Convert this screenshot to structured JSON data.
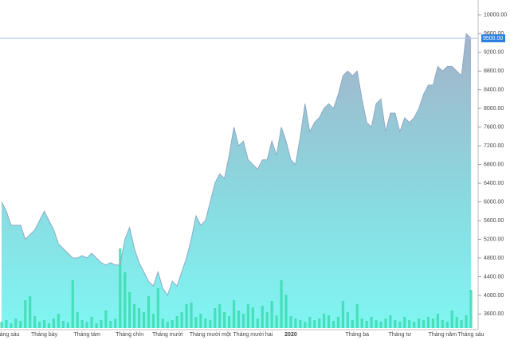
{
  "chart_data": {
    "type": "area",
    "categories": [
      null,
      "Tháng sáu",
      null,
      null,
      null,
      null,
      null,
      null,
      null,
      "Tháng bảy",
      null,
      null,
      null,
      null,
      null,
      null,
      null,
      null,
      "Tháng tám",
      null,
      null,
      null,
      null,
      null,
      null,
      null,
      null,
      "Tháng chín",
      null,
      null,
      null,
      null,
      null,
      null,
      null,
      "Tháng mười",
      null,
      null,
      null,
      null,
      null,
      null,
      null,
      null,
      "Tháng mười một",
      null,
      null,
      null,
      null,
      null,
      null,
      null,
      null,
      "Tháng mười hai",
      null,
      null,
      null,
      null,
      null,
      null,
      null,
      "2020",
      null,
      null,
      null,
      null,
      null,
      null,
      null,
      null,
      null,
      null,
      null,
      null,
      null,
      "Tháng ba",
      null,
      null,
      null,
      null,
      null,
      null,
      null,
      null,
      "Tháng tư",
      null,
      null,
      null,
      null,
      null,
      null,
      null,
      null,
      "Tháng năm",
      null,
      null,
      null,
      null,
      null,
      "Tháng sáu"
    ],
    "series": [
      {
        "color": "#8fa9c6",
        "values": [
          6000,
          5800,
          5500,
          5500,
          5500,
          5200,
          5300,
          5400,
          5600,
          5800,
          5600,
          5400,
          5100,
          5000,
          4900,
          4800,
          4800,
          4850,
          4800,
          4900,
          4800,
          4700,
          4650,
          4700,
          4650,
          4650,
          5200,
          5450,
          5000,
          4700,
          4500,
          4300,
          4200,
          4500,
          4150,
          4000,
          4300,
          4200,
          4500,
          4800,
          5200,
          5700,
          5500,
          5600,
          6000,
          6400,
          6600,
          6500,
          7000,
          7600,
          7200,
          7300,
          6900,
          6800,
          6700,
          6900,
          6900,
          7300,
          7000,
          7600,
          7300,
          6900,
          6800,
          7400,
          8100,
          7500,
          7700,
          7800,
          8000,
          8100,
          8000,
          8300,
          8700,
          8800,
          8700,
          8800,
          8200,
          7700,
          7600,
          8100,
          8200,
          7500,
          7900,
          7900,
          7500,
          7800,
          7700,
          7800,
          8000,
          8300,
          8500,
          8500,
          8900,
          8800,
          8900,
          8900,
          8800,
          8700,
          9600,
          9500
        ]
      },
      {
        "color": "#3ddbb0",
        "values": [
          8,
          10,
          6,
          12,
          9,
          35,
          40,
          15,
          8,
          10,
          6,
          12,
          18,
          9,
          7,
          60,
          20,
          10,
          8,
          14,
          6,
          10,
          22,
          9,
          12,
          100,
          70,
          45,
          30,
          25,
          20,
          40,
          18,
          50,
          12,
          8,
          10,
          15,
          20,
          30,
          32,
          14,
          18,
          12,
          10,
          25,
          30,
          20,
          15,
          35,
          22,
          18,
          30,
          26,
          12,
          28,
          20,
          34,
          16,
          60,
          42,
          15,
          12,
          10,
          8,
          14,
          10,
          12,
          18,
          16,
          9,
          14,
          34,
          20,
          10,
          30,
          12,
          9,
          14,
          10,
          8,
          12,
          16,
          10,
          8,
          14,
          10,
          8,
          12,
          10,
          14,
          12,
          18,
          10,
          8,
          22,
          14,
          10,
          16,
          48
        ]
      }
    ],
    "ylim": [
      3300,
      10150
    ],
    "yticks": [
      {
        "value": 3600,
        "label": "3600.00"
      },
      {
        "value": 4000,
        "label": "4000.00"
      },
      {
        "value": 4400,
        "label": "4400.00"
      },
      {
        "value": 4800,
        "label": "4800.00"
      },
      {
        "value": 5200,
        "label": "5200.00"
      },
      {
        "value": 5600,
        "label": "5600.00"
      },
      {
        "value": 6000,
        "label": "6000.00"
      },
      {
        "value": 6400,
        "label": "6400.00"
      },
      {
        "value": 6800,
        "label": "6800.00"
      },
      {
        "value": 7200,
        "label": "7200.00"
      },
      {
        "value": 7600,
        "label": "7600.00"
      },
      {
        "value": 8000,
        "label": "8000.00"
      },
      {
        "value": 8400,
        "label": "8400.00"
      },
      {
        "value": 8800,
        "label": "8800.00"
      },
      {
        "value": 9200,
        "label": "9200.00"
      },
      {
        "value": 9600,
        "label": "9600.00"
      },
      {
        "value": 10000,
        "label": "10000.00"
      }
    ],
    "last_price": {
      "value": 9500,
      "label": "9500.00"
    }
  }
}
